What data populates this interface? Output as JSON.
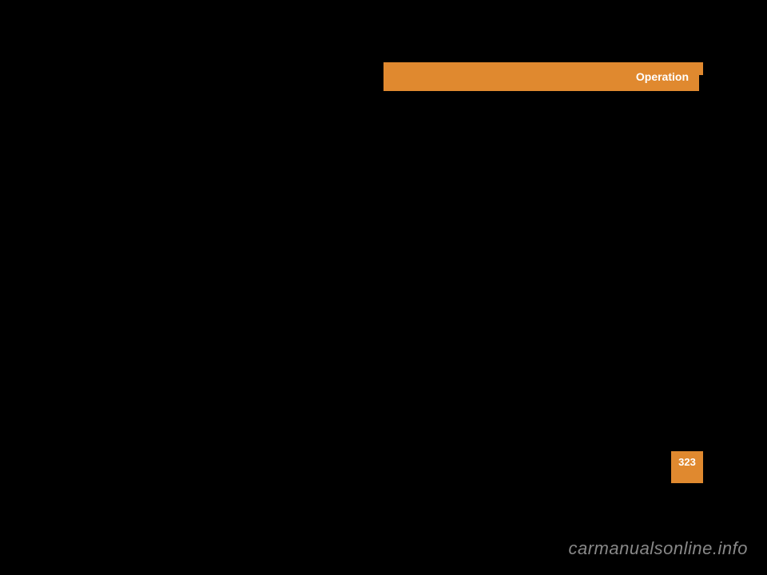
{
  "header": {
    "title": "Operation",
    "bg_color": "#e0892f",
    "text_color": "#ffffff"
  },
  "page": {
    "number": "323",
    "bg_color": "#e0892f",
    "text_color": "#ffffff"
  },
  "watermark": {
    "text": "carmanualsonline.info",
    "text_color": "#888888"
  },
  "background_color": "#000000"
}
